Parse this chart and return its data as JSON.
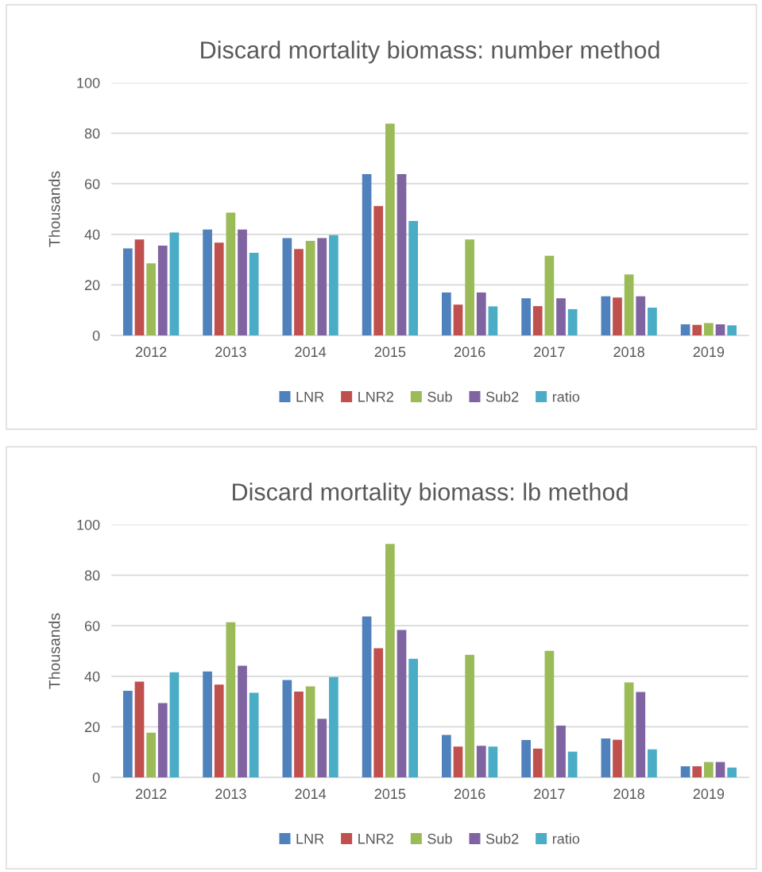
{
  "chart_data": [
    {
      "type": "bar",
      "title": "Discard mortality biomass: number method",
      "ylabel": "Thousands",
      "categories": [
        "2012",
        "2013",
        "2014",
        "2015",
        "2016",
        "2017",
        "2018",
        "2019"
      ],
      "series": [
        {
          "name": "LNR",
          "color": "#4f81bd",
          "values": [
            34.4,
            41.9,
            38.5,
            63.8,
            17.0,
            14.7,
            15.5,
            4.4
          ]
        },
        {
          "name": "LNR2",
          "color": "#c0504d",
          "values": [
            38.0,
            36.7,
            34.2,
            51.2,
            12.2,
            11.6,
            15.0,
            4.2
          ]
        },
        {
          "name": "Sub",
          "color": "#9bbb59",
          "values": [
            28.5,
            48.6,
            37.4,
            83.8,
            38.0,
            31.5,
            24.1,
            4.9
          ]
        },
        {
          "name": "Sub2",
          "color": "#8064a2",
          "values": [
            35.5,
            41.9,
            38.5,
            63.8,
            17.0,
            14.7,
            15.5,
            4.4
          ]
        },
        {
          "name": "ratio",
          "color": "#4bacc6",
          "values": [
            40.7,
            32.7,
            39.7,
            45.3,
            11.5,
            10.4,
            11.0,
            4.0
          ]
        }
      ],
      "ylim": [
        0,
        100
      ],
      "yticks": [
        0,
        20,
        40,
        60,
        80,
        100
      ],
      "grid": "y",
      "legend": "bottom"
    },
    {
      "type": "bar",
      "title": "Discard mortality biomass: lb method",
      "ylabel": "Thousands",
      "categories": [
        "2012",
        "2013",
        "2014",
        "2015",
        "2016",
        "2017",
        "2018",
        "2019"
      ],
      "series": [
        {
          "name": "LNR",
          "color": "#4f81bd",
          "values": [
            34.3,
            41.9,
            38.5,
            63.7,
            16.8,
            14.8,
            15.4,
            4.4
          ]
        },
        {
          "name": "LNR2",
          "color": "#c0504d",
          "values": [
            37.9,
            36.7,
            34.0,
            51.1,
            12.2,
            11.4,
            14.9,
            4.4
          ]
        },
        {
          "name": "Sub",
          "color": "#9bbb59",
          "values": [
            17.7,
            61.4,
            36.0,
            92.4,
            48.5,
            50.1,
            37.6,
            6.1
          ]
        },
        {
          "name": "Sub2",
          "color": "#8064a2",
          "values": [
            29.4,
            44.2,
            23.2,
            58.3,
            12.5,
            20.5,
            33.8,
            6.1
          ]
        },
        {
          "name": "ratio",
          "color": "#4bacc6",
          "values": [
            41.6,
            33.5,
            39.7,
            46.9,
            12.2,
            10.2,
            11.1,
            3.9
          ]
        }
      ],
      "ylim": [
        0,
        100
      ],
      "yticks": [
        0,
        20,
        40,
        60,
        80,
        100
      ],
      "grid": "y",
      "legend": "bottom"
    }
  ]
}
